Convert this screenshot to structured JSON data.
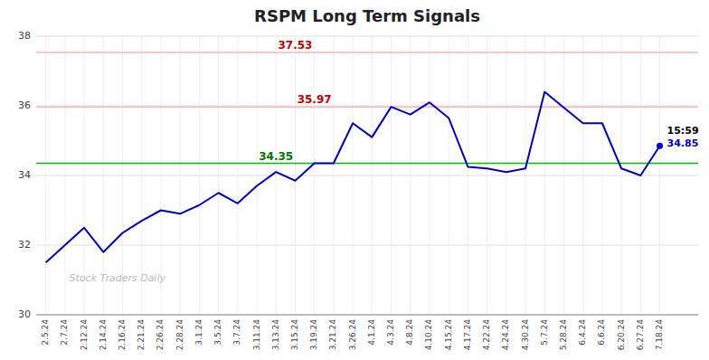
{
  "chart_data": {
    "type": "line",
    "title": "RSPM Long Term Signals",
    "watermark": "Stock Traders Daily",
    "categories": [
      "2.5.24",
      "2.7.24",
      "2.12.24",
      "2.14.24",
      "2.16.24",
      "2.21.24",
      "2.26.24",
      "2.28.24",
      "3.1.24",
      "3.5.24",
      "3.7.24",
      "3.11.24",
      "3.13.24",
      "3.15.24",
      "3.19.24",
      "3.21.24",
      "3.26.24",
      "4.1.24",
      "4.3.24",
      "4.8.24",
      "4.10.24",
      "4.15.24",
      "4.17.24",
      "4.22.24",
      "4.24.24",
      "4.30.24",
      "5.7.24",
      "5.28.24",
      "6.4.24",
      "6.6.24",
      "6.20.24",
      "6.27.24",
      "7.18.24"
    ],
    "series": [
      {
        "color": "#0000cc",
        "values": [
          31.5,
          32.0,
          32.5,
          31.8,
          32.35,
          32.7,
          33.0,
          32.9,
          33.15,
          33.5,
          33.2,
          33.7,
          34.1,
          33.85,
          34.35,
          34.35,
          35.5,
          35.1,
          35.97,
          35.75,
          36.1,
          35.65,
          34.25,
          34.2,
          34.1,
          34.2,
          36.4,
          35.95,
          35.5,
          35.5,
          34.2,
          34.0,
          34.85
        ]
      }
    ],
    "hlines": [
      {
        "value": 37.53,
        "color": "#ffb3b3",
        "label_color": "#cc0000"
      },
      {
        "value": 35.97,
        "color": "#ffb3b3",
        "label_color": "#cc0000"
      },
      {
        "value": 34.35,
        "color": "#00bb00",
        "label_color": "#007700"
      }
    ],
    "annotations": [
      "15:59"
    ],
    "ylim": [
      30,
      38
    ],
    "yticks": [
      30,
      32,
      34,
      36,
      38
    ],
    "grid": true
  }
}
